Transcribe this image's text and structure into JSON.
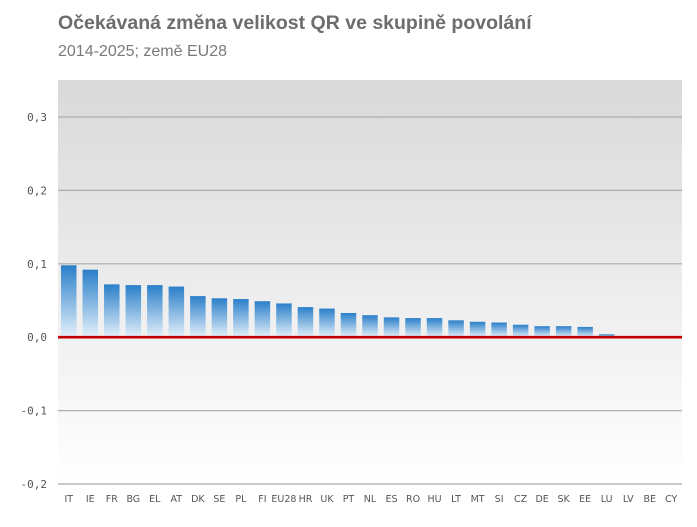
{
  "chart_data": {
    "type": "bar",
    "title": "Očekávaná změna velikost QR ve skupině povolání",
    "subtitle": "2014-2025; země EU28",
    "xlabel": "",
    "ylabel": "",
    "ylim": [
      -0.2,
      0.35
    ],
    "yticks": [
      0.3,
      0.2,
      0.1,
      0.0,
      -0.1,
      -0.2
    ],
    "ytick_labels": [
      "0,3",
      "0,2",
      "0,1",
      "0,0",
      "-0,1",
      "-0,2"
    ],
    "categories": [
      "IT",
      "IE",
      "FR",
      "BG",
      "EL",
      "AT",
      "DK",
      "SE",
      "PL",
      "FI",
      "EU28",
      "HR",
      "UK",
      "PT",
      "NL",
      "ES",
      "RO",
      "HU",
      "LT",
      "MT",
      "SI",
      "CZ",
      "DE",
      "SK",
      "EE",
      "LU",
      "LV",
      "BE",
      "CY"
    ],
    "values": [
      0.098,
      0.092,
      0.072,
      0.071,
      0.071,
      0.069,
      0.056,
      0.053,
      0.052,
      0.049,
      0.046,
      0.041,
      0.039,
      0.033,
      0.03,
      0.027,
      0.026,
      0.026,
      0.023,
      0.021,
      0.02,
      0.017,
      0.015,
      0.015,
      0.014,
      0.004,
      0.0,
      0.0,
      0.0
    ],
    "grid": true,
    "colors": {
      "bar_top": "#2a7fc9",
      "bar_bottom": "#e3f0fa",
      "zero_line": "#c00000",
      "plot_bg_top": "#d9d9d9",
      "plot_bg_bottom": "#ffffff",
      "gridline": "#ababab"
    }
  }
}
